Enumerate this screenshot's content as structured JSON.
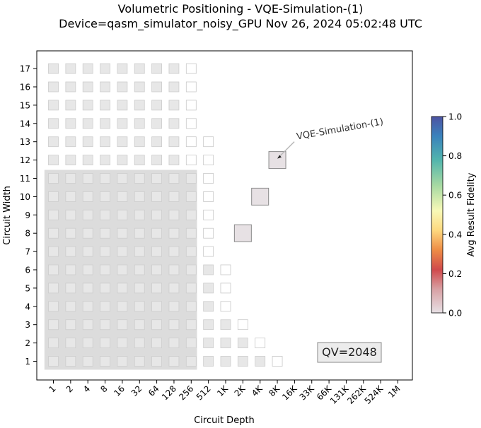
{
  "chart_data": {
    "type": "scatter",
    "title": "Volumetric Positioning - VQE-Simulation-(1)",
    "subtitle": "Device=qasm_simulator_noisy_GPU  Nov 26, 2024 05:02:48 UTC",
    "xlabel": "Circuit Depth",
    "ylabel": "Circuit Width",
    "x_ticks": [
      "1",
      "2",
      "4",
      "8",
      "16",
      "32",
      "64",
      "128",
      "256",
      "512",
      "1K",
      "2K",
      "4K",
      "8K",
      "16K",
      "33K",
      "66K",
      "131K",
      "262K",
      "524K",
      "1M"
    ],
    "y_ticks": [
      "1",
      "2",
      "3",
      "4",
      "5",
      "6",
      "7",
      "8",
      "9",
      "10",
      "11",
      "12",
      "13",
      "14",
      "15",
      "16",
      "17"
    ],
    "grid": false,
    "colorbar": {
      "label": "Avg Result Fidelity",
      "range": [
        0.0,
        1.0
      ],
      "ticks": [
        "0.0",
        "0.2",
        "0.4",
        "0.6",
        "0.8",
        "1.0"
      ]
    },
    "quantum_volume_label": "QV=2048",
    "qv_region": {
      "max_depth": 256,
      "max_width": 11
    },
    "volumetric_grid": [
      {
        "width": 1,
        "max_depth": 8192
      },
      {
        "width": 2,
        "max_depth": 4096
      },
      {
        "width": 3,
        "max_depth": 2048
      },
      {
        "width": 4,
        "max_depth": 1024
      },
      {
        "width": 5,
        "max_depth": 1024
      },
      {
        "width": 6,
        "max_depth": 1024
      },
      {
        "width": 7,
        "max_depth": 512
      },
      {
        "width": 8,
        "max_depth": 512
      },
      {
        "width": 9,
        "max_depth": 512
      },
      {
        "width": 10,
        "max_depth": 512
      },
      {
        "width": 11,
        "max_depth": 512
      },
      {
        "width": 12,
        "max_depth": 512
      },
      {
        "width": 13,
        "max_depth": 512
      },
      {
        "width": 14,
        "max_depth": 256
      },
      {
        "width": 15,
        "max_depth": 256
      },
      {
        "width": 16,
        "max_depth": 256
      },
      {
        "width": 17,
        "max_depth": 256
      }
    ],
    "data_points": [
      {
        "width": 8,
        "depth": 2048,
        "fidelity": 0.0
      },
      {
        "width": 10,
        "depth": 4096,
        "fidelity": 0.0
      },
      {
        "width": 12,
        "depth": 8192,
        "fidelity": 0.0
      }
    ],
    "annotation": {
      "text": "VQE-Simulation-(1)",
      "target": {
        "width": 12,
        "depth": 8192
      }
    }
  }
}
